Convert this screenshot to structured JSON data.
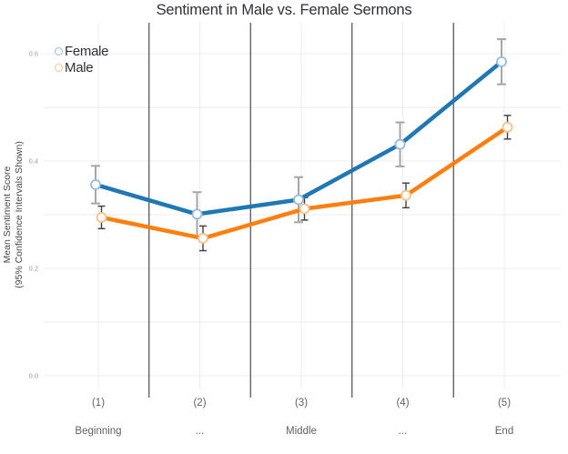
{
  "chart_data": {
    "type": "line",
    "title": "Sentiment in Male vs. Female Sermons",
    "ylabel_line1": "Mean Sentiment Score",
    "ylabel_line2": "(95% Confidence Intervals Shown)",
    "categories": [
      "(1)",
      "(2)",
      "(3)",
      "(4)",
      "(5)"
    ],
    "category_sublabels": [
      "Beginning",
      "...",
      "Middle",
      "...",
      "End"
    ],
    "y_ticks": [
      0.0,
      0.2,
      0.4,
      0.6
    ],
    "y_tick_labels": [
      "0.0",
      "0.2",
      "0.4",
      "0.6"
    ],
    "ylim": [
      -0.04,
      0.66
    ],
    "grid": "on",
    "grid_minor_step": 0.1,
    "legend_position": "top-left-inside",
    "series": [
      {
        "name": "Female",
        "color": "#1f77b4",
        "marker_stroke": "#93bcde",
        "error_color": "#a6a6a6",
        "values": [
          0.356,
          0.301,
          0.328,
          0.431,
          0.585
        ],
        "ci": [
          0.035,
          0.041,
          0.042,
          0.041,
          0.042
        ]
      },
      {
        "name": "Male",
        "color": "#ff7f0e",
        "marker_stroke": "#f9c089",
        "error_color": "#3d3d3d",
        "values": [
          0.295,
          0.256,
          0.311,
          0.336,
          0.463
        ],
        "ci": [
          0.021,
          0.023,
          0.021,
          0.023,
          0.022
        ]
      }
    ],
    "style": {
      "grid_color": "#ebecef",
      "separator_color": "#4a4a4a",
      "y_tick_color": "#9a9a9a",
      "x_tick_color": "#626262",
      "background": "#ffffff"
    }
  }
}
